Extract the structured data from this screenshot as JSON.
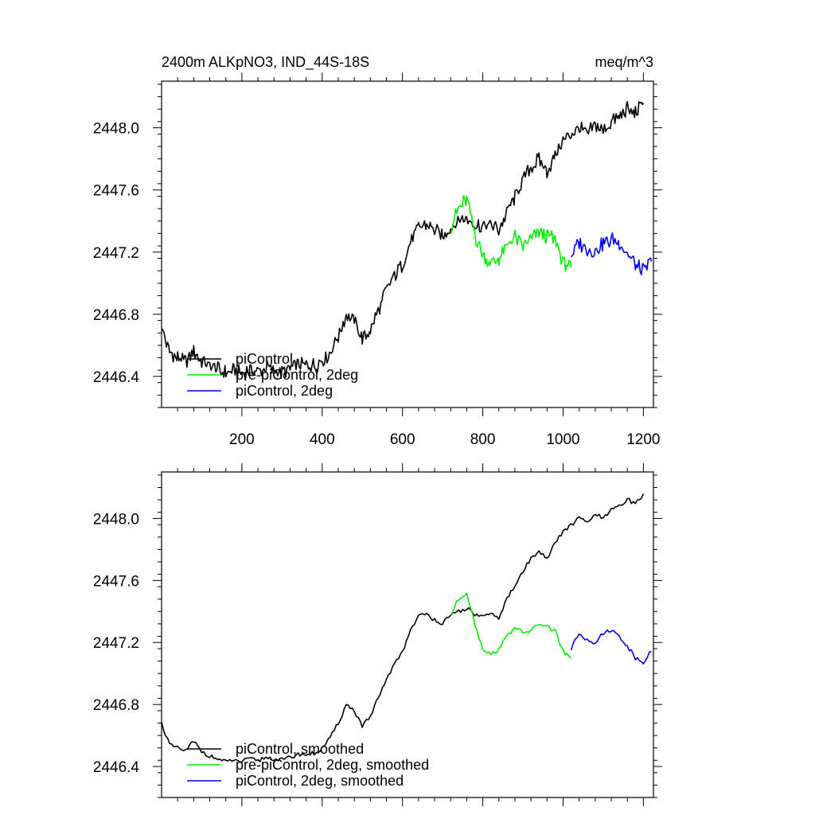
{
  "chart_data": [
    {
      "type": "line",
      "title_left": "2400m ALKpNO3, IND_44S-18S",
      "title_right": "meq/m^3",
      "xlim": [
        0,
        1225
      ],
      "ylim": [
        2446.2,
        2448.3
      ],
      "x_ticks": [
        200,
        400,
        600,
        800,
        1000,
        1200
      ],
      "x_tick_labels": [
        "200",
        "400",
        "600",
        "800",
        "1000",
        "1200"
      ],
      "y_ticks": [
        2446.4,
        2446.8,
        2447.2,
        2447.6,
        2448.0
      ],
      "y_tick_labels": [
        "2446.4",
        "2446.8",
        "2447.2",
        "2447.6",
        "2448.0"
      ],
      "legend_position": "bottom-left",
      "series": [
        {
          "name": "piControl",
          "color": "#000000",
          "x": [
            0,
            20,
            40,
            60,
            80,
            100,
            120,
            140,
            160,
            180,
            200,
            220,
            240,
            260,
            280,
            300,
            320,
            340,
            360,
            380,
            400,
            420,
            440,
            460,
            480,
            500,
            520,
            540,
            560,
            580,
            600,
            620,
            640,
            660,
            680,
            700,
            720,
            740,
            760,
            780,
            800,
            820,
            840,
            860,
            880,
            900,
            920,
            940,
            960,
            980,
            1000,
            1020,
            1040,
            1060,
            1080,
            1100,
            1120,
            1140,
            1160,
            1180,
            1200
          ],
          "y": [
            2446.72,
            2446.55,
            2446.52,
            2446.5,
            2446.56,
            2446.5,
            2446.47,
            2446.45,
            2446.42,
            2446.44,
            2446.42,
            2446.44,
            2446.43,
            2446.46,
            2446.44,
            2446.42,
            2446.45,
            2446.48,
            2446.47,
            2446.47,
            2446.5,
            2446.56,
            2446.66,
            2446.8,
            2446.76,
            2446.64,
            2446.7,
            2446.82,
            2446.96,
            2447.05,
            2447.12,
            2447.26,
            2447.36,
            2447.38,
            2447.34,
            2447.3,
            2447.36,
            2447.4,
            2447.42,
            2447.38,
            2447.36,
            2447.38,
            2447.34,
            2447.46,
            2447.55,
            2447.66,
            2447.74,
            2447.8,
            2447.72,
            2447.82,
            2447.92,
            2447.95,
            2448.0,
            2447.96,
            2448.02,
            2447.98,
            2448.04,
            2448.07,
            2448.12,
            2448.1,
            2448.16
          ]
        },
        {
          "name": "pre-piControl, 2deg",
          "color": "#00ee00",
          "x": [
            720,
            740,
            760,
            780,
            800,
            820,
            840,
            860,
            880,
            900,
            920,
            940,
            960,
            980,
            1000,
            1020
          ],
          "y": [
            2447.36,
            2447.48,
            2447.54,
            2447.32,
            2447.18,
            2447.12,
            2447.16,
            2447.24,
            2447.3,
            2447.24,
            2447.28,
            2447.32,
            2447.3,
            2447.28,
            2447.14,
            2447.1
          ]
        },
        {
          "name": "piControl, 2deg",
          "color": "#0000ee",
          "x": [
            1020,
            1040,
            1060,
            1080,
            1100,
            1120,
            1140,
            1160,
            1180,
            1200,
            1220
          ],
          "y": [
            2447.18,
            2447.26,
            2447.22,
            2447.2,
            2447.26,
            2447.28,
            2447.26,
            2447.2,
            2447.12,
            2447.08,
            2447.14
          ]
        }
      ]
    },
    {
      "type": "line",
      "xlim": [
        0,
        1225
      ],
      "ylim": [
        2446.2,
        2448.3
      ],
      "x_ticks": [
        200,
        400,
        600,
        800,
        1000,
        1200
      ],
      "y_ticks": [
        2446.4,
        2446.8,
        2447.2,
        2447.6,
        2448.0
      ],
      "y_tick_labels": [
        "2446.4",
        "2446.8",
        "2447.2",
        "2447.6",
        "2448.0"
      ],
      "legend_position": "bottom-left",
      "series": [
        {
          "name": "piControl, smoothed",
          "color": "#000000",
          "x": [
            0,
            20,
            40,
            60,
            80,
            100,
            120,
            140,
            160,
            180,
            200,
            220,
            240,
            260,
            280,
            300,
            320,
            340,
            360,
            380,
            400,
            420,
            440,
            460,
            480,
            500,
            520,
            540,
            560,
            580,
            600,
            620,
            640,
            660,
            680,
            700,
            720,
            740,
            760,
            780,
            800,
            820,
            840,
            860,
            880,
            900,
            920,
            940,
            960,
            980,
            1000,
            1020,
            1040,
            1060,
            1080,
            1100,
            1120,
            1140,
            1160,
            1180,
            1200
          ],
          "y": [
            2446.68,
            2446.54,
            2446.52,
            2446.5,
            2446.56,
            2446.5,
            2446.47,
            2446.45,
            2446.43,
            2446.44,
            2446.43,
            2446.45,
            2446.44,
            2446.46,
            2446.45,
            2446.44,
            2446.46,
            2446.48,
            2446.48,
            2446.48,
            2446.52,
            2446.58,
            2446.68,
            2446.8,
            2446.76,
            2446.66,
            2446.72,
            2446.84,
            2446.96,
            2447.06,
            2447.14,
            2447.28,
            2447.37,
            2447.38,
            2447.35,
            2447.32,
            2447.37,
            2447.4,
            2447.42,
            2447.38,
            2447.37,
            2447.38,
            2447.36,
            2447.48,
            2447.56,
            2447.66,
            2447.74,
            2447.8,
            2447.74,
            2447.84,
            2447.92,
            2447.96,
            2448.0,
            2447.98,
            2448.02,
            2448.0,
            2448.05,
            2448.08,
            2448.12,
            2448.1,
            2448.16
          ]
        },
        {
          "name": "pre-piControl, 2deg, smoothed",
          "color": "#00ee00",
          "x": [
            720,
            740,
            760,
            780,
            800,
            820,
            840,
            860,
            880,
            900,
            920,
            940,
            960,
            980,
            1000,
            1020
          ],
          "y": [
            2447.38,
            2447.48,
            2447.52,
            2447.32,
            2447.16,
            2447.12,
            2447.16,
            2447.24,
            2447.3,
            2447.26,
            2447.28,
            2447.32,
            2447.3,
            2447.28,
            2447.14,
            2447.1
          ]
        },
        {
          "name": "piControl, 2deg, smoothed",
          "color": "#0000ee",
          "x": [
            1020,
            1040,
            1060,
            1080,
            1100,
            1120,
            1140,
            1160,
            1180,
            1200,
            1220
          ],
          "y": [
            2447.16,
            2447.26,
            2447.22,
            2447.2,
            2447.26,
            2447.28,
            2447.24,
            2447.18,
            2447.1,
            2447.08,
            2447.14
          ]
        }
      ]
    }
  ]
}
